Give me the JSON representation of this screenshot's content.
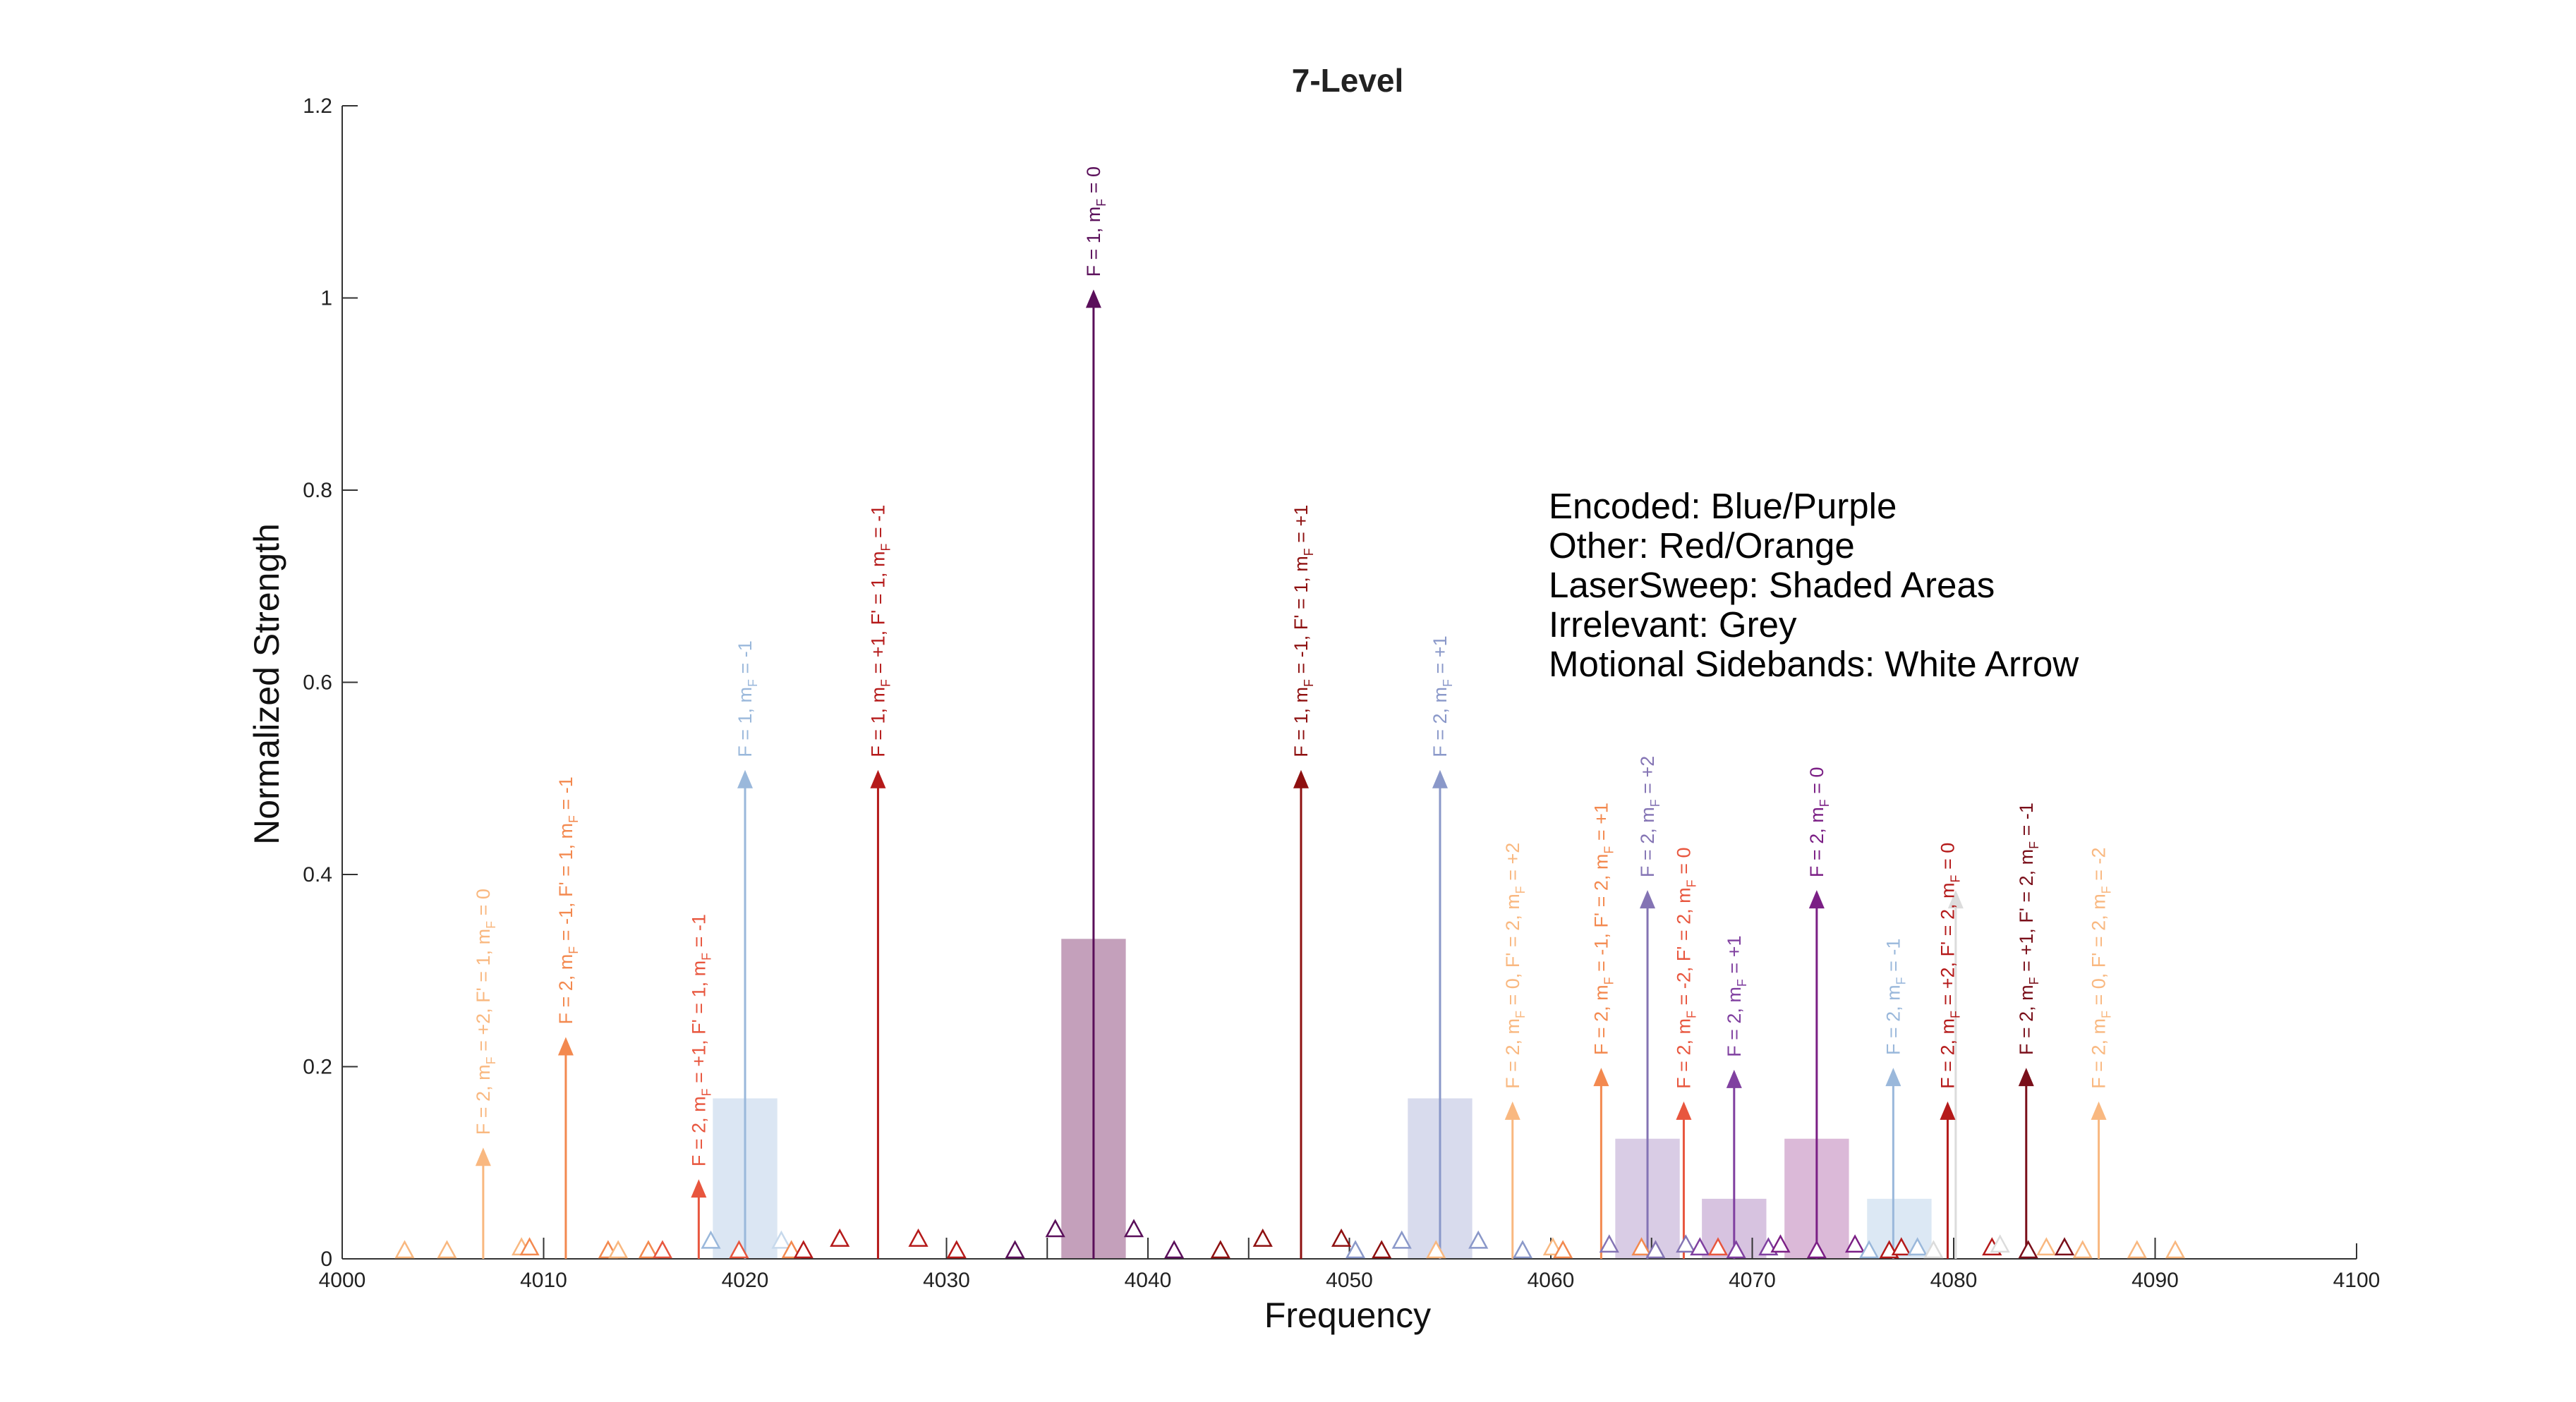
{
  "chart_data": {
    "type": "stem",
    "title": "7-Level",
    "xlabel": "Frequency",
    "ylabel": "Normalized Strength",
    "xlim": [
      4000,
      4100
    ],
    "ylim": [
      0,
      1.2
    ],
    "xticks": [
      4000,
      4010,
      4020,
      4030,
      4040,
      4050,
      4060,
      4070,
      4080,
      4090,
      4100
    ],
    "yticks": [
      0,
      0.2,
      0.4,
      0.6,
      0.8,
      1,
      1.2
    ],
    "ytick_labels": [
      "0",
      "0.2",
      "0.4",
      "0.6",
      "0.8",
      "1",
      "1.2"
    ],
    "legend": [
      "Encoded: Blue/Purple",
      "Other: Red/Orange",
      "LaserSweep: Shaded Areas",
      "Irrelevant: Grey",
      "Motional Sidebands: White Arrow"
    ],
    "laser_sweep_areas": [
      {
        "x0": 4018.4,
        "x1": 4021.6,
        "height": 0.167,
        "color": "#c7d9ec"
      },
      {
        "x0": 4035.7,
        "x1": 4038.9,
        "height": 0.333,
        "color": "#a46d96"
      },
      {
        "x0": 4052.9,
        "x1": 4056.1,
        "height": 0.167,
        "color": "#c3c7e4"
      },
      {
        "x0": 4063.2,
        "x1": 4066.4,
        "height": 0.125,
        "color": "#c4b1d7"
      },
      {
        "x0": 4067.5,
        "x1": 4070.7,
        "height": 0.0625,
        "color": "#c2a3cf"
      },
      {
        "x0": 4071.6,
        "x1": 4074.8,
        "height": 0.125,
        "color": "#c794c3"
      },
      {
        "x0": 4075.7,
        "x1": 4078.9,
        "height": 0.0625,
        "color": "#cadbee"
      }
    ],
    "peaks": [
      {
        "x": 4007.0,
        "y": 0.107,
        "color": "#f9b880",
        "label": [
          "F = 2, m",
          "F",
          " = +2, F' = 1, m",
          "F",
          " = 0"
        ]
      },
      {
        "x": 4011.1,
        "y": 0.222,
        "color": "#f3894f",
        "label": [
          "F = 2, m",
          "F",
          " = -1, F' = 1, m",
          "F",
          " = -1"
        ]
      },
      {
        "x": 4017.7,
        "y": 0.074,
        "color": "#e8563e",
        "label": [
          "F = 2, m",
          "F",
          " = +1, F' = 1, m",
          "F",
          " = -1"
        ]
      },
      {
        "x": 4020.0,
        "y": 0.5,
        "color": "#9ab8db",
        "label": [
          "F = 1, m",
          "F",
          " = -1"
        ]
      },
      {
        "x": 4026.6,
        "y": 0.5,
        "color": "#b51a1a",
        "label": [
          "F = 1, m",
          "F",
          " = +1, F' = 1, m",
          "F",
          " = -1"
        ]
      },
      {
        "x": 4037.3,
        "y": 1.0,
        "color": "#5a0f5a",
        "label": [
          "F = 1, m",
          "F",
          " = 0"
        ]
      },
      {
        "x": 4047.6,
        "y": 0.5,
        "color": "#8e1010",
        "label": [
          "F = 1, m",
          "F",
          " = -1, F' = 1, m",
          "F",
          " = +1"
        ]
      },
      {
        "x": 4054.5,
        "y": 0.5,
        "color": "#8a98c9",
        "label": [
          "F = 2, m",
          "F",
          " = +1"
        ]
      },
      {
        "x": 4058.1,
        "y": 0.155,
        "color": "#f9b880",
        "label": [
          "F = 2, m",
          "F",
          " = 0, F' = 2, m",
          "F",
          " = +2"
        ]
      },
      {
        "x": 4062.5,
        "y": 0.19,
        "color": "#f3894f",
        "label": [
          "F = 2, m",
          "F",
          " = -1, F' = 2, m",
          "F",
          " = +1"
        ]
      },
      {
        "x": 4064.8,
        "y": 0.375,
        "color": "#8474b4",
        "label": [
          "F = 2, m",
          "F",
          " = +2"
        ]
      },
      {
        "x": 4066.6,
        "y": 0.155,
        "color": "#e8563e",
        "label": [
          "F = 2, m",
          "F",
          " = -2, F' = 2, m",
          "F",
          " = 0"
        ]
      },
      {
        "x": 4069.1,
        "y": 0.188,
        "color": "#8040a0",
        "label": [
          "F = 2, m",
          "F",
          " = +1"
        ]
      },
      {
        "x": 4073.2,
        "y": 0.375,
        "color": "#7b1f85",
        "label": [
          "F = 2, m",
          "F",
          " = 0"
        ]
      },
      {
        "x": 4077.0,
        "y": 0.19,
        "color": "#9ab8db",
        "label": [
          "F = 2, m",
          "F",
          " = -1"
        ]
      },
      {
        "x": 4080.1,
        "y": 0.375,
        "color": "#dcdcdc",
        "label": []
      },
      {
        "x": 4079.7,
        "y": 0.155,
        "color": "#b51a1a",
        "label": [
          "F = 2, m",
          "F",
          " = +2, F' = 2, m",
          "F",
          " = 0"
        ]
      },
      {
        "x": 4083.6,
        "y": 0.19,
        "color": "#7a0f1a",
        "label": [
          "F = 2, m",
          "F",
          " = +1, F' = 2, m",
          "F",
          " = -1"
        ]
      },
      {
        "x": 4087.2,
        "y": 0.155,
        "color": "#f9b880",
        "label": [
          "F = 2, m",
          "F",
          " = 0, F' = 2, m",
          "F",
          " = -2"
        ]
      }
    ],
    "sidebands": [
      {
        "x": 4003.1,
        "y": 0.0,
        "color": "#f9b880"
      },
      {
        "x": 4005.2,
        "y": 0.0,
        "color": "#f9b880"
      },
      {
        "x": 4008.9,
        "y": 0.003,
        "color": "#f9b880"
      },
      {
        "x": 4009.3,
        "y": 0.003,
        "color": "#f3894f"
      },
      {
        "x": 4013.2,
        "y": 0.0,
        "color": "#f3894f"
      },
      {
        "x": 4013.7,
        "y": 0.0,
        "color": "#f9b880"
      },
      {
        "x": 4015.2,
        "y": 0.0,
        "color": "#f3894f"
      },
      {
        "x": 4015.9,
        "y": 0.0,
        "color": "#e8563e"
      },
      {
        "x": 4018.3,
        "y": 0.01,
        "color": "#9ab8db"
      },
      {
        "x": 4019.7,
        "y": 0.0,
        "color": "#e8563e"
      },
      {
        "x": 4021.8,
        "y": 0.01,
        "color": "#c7d9ec"
      },
      {
        "x": 4022.3,
        "y": 0.0,
        "color": "#f3894f"
      },
      {
        "x": 4022.9,
        "y": 0.0,
        "color": "#b51a1a"
      },
      {
        "x": 4024.7,
        "y": 0.012,
        "color": "#b51a1a"
      },
      {
        "x": 4028.6,
        "y": 0.012,
        "color": "#b51a1a"
      },
      {
        "x": 4030.5,
        "y": 0.0,
        "color": "#b51a1a"
      },
      {
        "x": 4033.4,
        "y": 0.0,
        "color": "#5a0f5a"
      },
      {
        "x": 4035.4,
        "y": 0.022,
        "color": "#5a0f5a"
      },
      {
        "x": 4039.3,
        "y": 0.022,
        "color": "#5a0f5a"
      },
      {
        "x": 4041.3,
        "y": 0.0,
        "color": "#5a0f5a"
      },
      {
        "x": 4043.6,
        "y": 0.0,
        "color": "#8e1010"
      },
      {
        "x": 4045.7,
        "y": 0.012,
        "color": "#8e1010"
      },
      {
        "x": 4049.6,
        "y": 0.012,
        "color": "#8e1010"
      },
      {
        "x": 4050.3,
        "y": 0.0,
        "color": "#8a98c9"
      },
      {
        "x": 4051.6,
        "y": 0.0,
        "color": "#8e1010"
      },
      {
        "x": 4052.6,
        "y": 0.01,
        "color": "#8a98c9"
      },
      {
        "x": 4054.3,
        "y": 0.0,
        "color": "#f9b880"
      },
      {
        "x": 4056.4,
        "y": 0.01,
        "color": "#8a98c9"
      },
      {
        "x": 4058.6,
        "y": 0.0,
        "color": "#8a98c9"
      },
      {
        "x": 4060.1,
        "y": 0.003,
        "color": "#f9b880"
      },
      {
        "x": 4060.6,
        "y": 0.0,
        "color": "#f3894f"
      },
      {
        "x": 4062.9,
        "y": 0.006,
        "color": "#8474b4"
      },
      {
        "x": 4064.5,
        "y": 0.003,
        "color": "#f3894f"
      },
      {
        "x": 4065.2,
        "y": 0.0,
        "color": "#8474b4"
      },
      {
        "x": 4066.7,
        "y": 0.006,
        "color": "#8474b4"
      },
      {
        "x": 4067.4,
        "y": 0.003,
        "color": "#8040a0"
      },
      {
        "x": 4068.3,
        "y": 0.003,
        "color": "#e8563e"
      },
      {
        "x": 4069.2,
        "y": 0.0,
        "color": "#8040a0"
      },
      {
        "x": 4070.8,
        "y": 0.003,
        "color": "#8040a0"
      },
      {
        "x": 4071.4,
        "y": 0.006,
        "color": "#7b1f85"
      },
      {
        "x": 4073.2,
        "y": 0.0,
        "color": "#7b1f85"
      },
      {
        "x": 4075.1,
        "y": 0.006,
        "color": "#7b1f85"
      },
      {
        "x": 4075.8,
        "y": 0.0,
        "color": "#9ab8db"
      },
      {
        "x": 4076.8,
        "y": 0.0,
        "color": "#b51a1a"
      },
      {
        "x": 4077.4,
        "y": 0.003,
        "color": "#b51a1a"
      },
      {
        "x": 4078.2,
        "y": 0.003,
        "color": "#9ab8db"
      },
      {
        "x": 4079.0,
        "y": 0.0,
        "color": "#dcdcdc"
      },
      {
        "x": 4081.9,
        "y": 0.003,
        "color": "#b51a1a"
      },
      {
        "x": 4082.3,
        "y": 0.006,
        "color": "#dcdcdc"
      },
      {
        "x": 4083.7,
        "y": 0.0,
        "color": "#7a0f1a"
      },
      {
        "x": 4084.6,
        "y": 0.003,
        "color": "#f9b880"
      },
      {
        "x": 4085.5,
        "y": 0.003,
        "color": "#7a0f1a"
      },
      {
        "x": 4086.4,
        "y": 0.0,
        "color": "#f9b880"
      },
      {
        "x": 4089.1,
        "y": 0.0,
        "color": "#f9b880"
      },
      {
        "x": 4091.0,
        "y": 0.0,
        "color": "#f9b880"
      }
    ],
    "reference_ticks": [
      4010,
      4020,
      4030,
      4035,
      4037.3,
      4040,
      4045,
      4050,
      4054.5,
      4060,
      4065,
      4070,
      4073.2,
      4080,
      4083.6,
      4090
    ]
  }
}
